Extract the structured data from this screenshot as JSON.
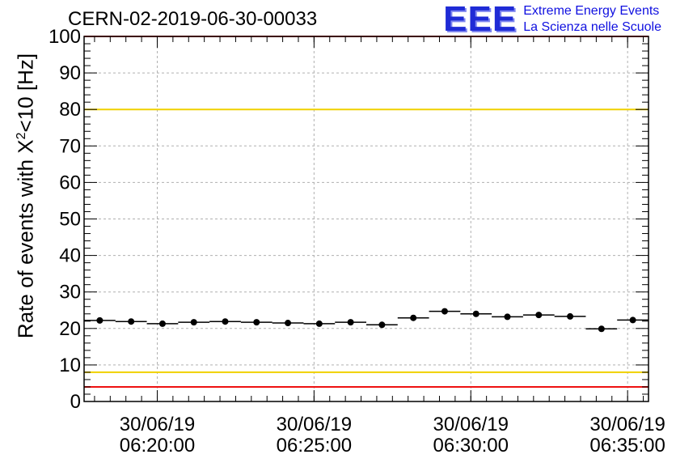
{
  "header": {
    "run_id": "CERN-02-2019-06-30-00033",
    "brand_logo": "EEE",
    "brand_line1": "Extreme Energy Events",
    "brand_line2": "La Scienza nelle Scuole"
  },
  "axis": {
    "ylabel_prefix": "Rate of events with X",
    "ylabel_sup": "2",
    "ylabel_suffix": "<10 [Hz]"
  },
  "colors": {
    "red_line": "#ee1111",
    "yellow_line": "#f0d000",
    "markers": "#000000",
    "grid": "#b0b0b0"
  },
  "chart_data": {
    "type": "scatter",
    "title": "CERN-02-2019-06-30-00033",
    "ylabel": "Rate of events with X^2<10 [Hz]",
    "ylim": [
      0,
      100
    ],
    "y_ticks": [
      0,
      10,
      20,
      30,
      40,
      50,
      60,
      70,
      80,
      90,
      100
    ],
    "xlim": [
      "30/06/19 06:17:40",
      "30/06/19 06:35:40"
    ],
    "x_ticks": [
      {
        "date": "30/06/19",
        "time": "06:20:00"
      },
      {
        "date": "30/06/19",
        "time": "06:25:00"
      },
      {
        "date": "30/06/19",
        "time": "06:30:00"
      },
      {
        "date": "30/06/19",
        "time": "06:35:00"
      }
    ],
    "grid": true,
    "bin_width_s": 60,
    "x": [
      "06:18:10",
      "06:19:10",
      "06:20:10",
      "06:21:10",
      "06:22:10",
      "06:23:10",
      "06:24:10",
      "06:25:10",
      "06:26:10",
      "06:27:10",
      "06:28:10",
      "06:29:10",
      "06:30:10",
      "06:31:10",
      "06:32:10",
      "06:33:10",
      "06:34:10",
      "06:35:10"
    ],
    "values": [
      22.2,
      21.9,
      21.3,
      21.7,
      21.9,
      21.7,
      21.5,
      21.3,
      21.7,
      21.0,
      22.9,
      24.7,
      24.0,
      23.2,
      23.7,
      23.3,
      19.9,
      22.3
    ],
    "reference_lines": [
      {
        "y": 80,
        "color": "yellow"
      },
      {
        "y": 8,
        "color": "yellow"
      },
      {
        "y": 100,
        "color": "red"
      },
      {
        "y": 4,
        "color": "red"
      }
    ]
  }
}
